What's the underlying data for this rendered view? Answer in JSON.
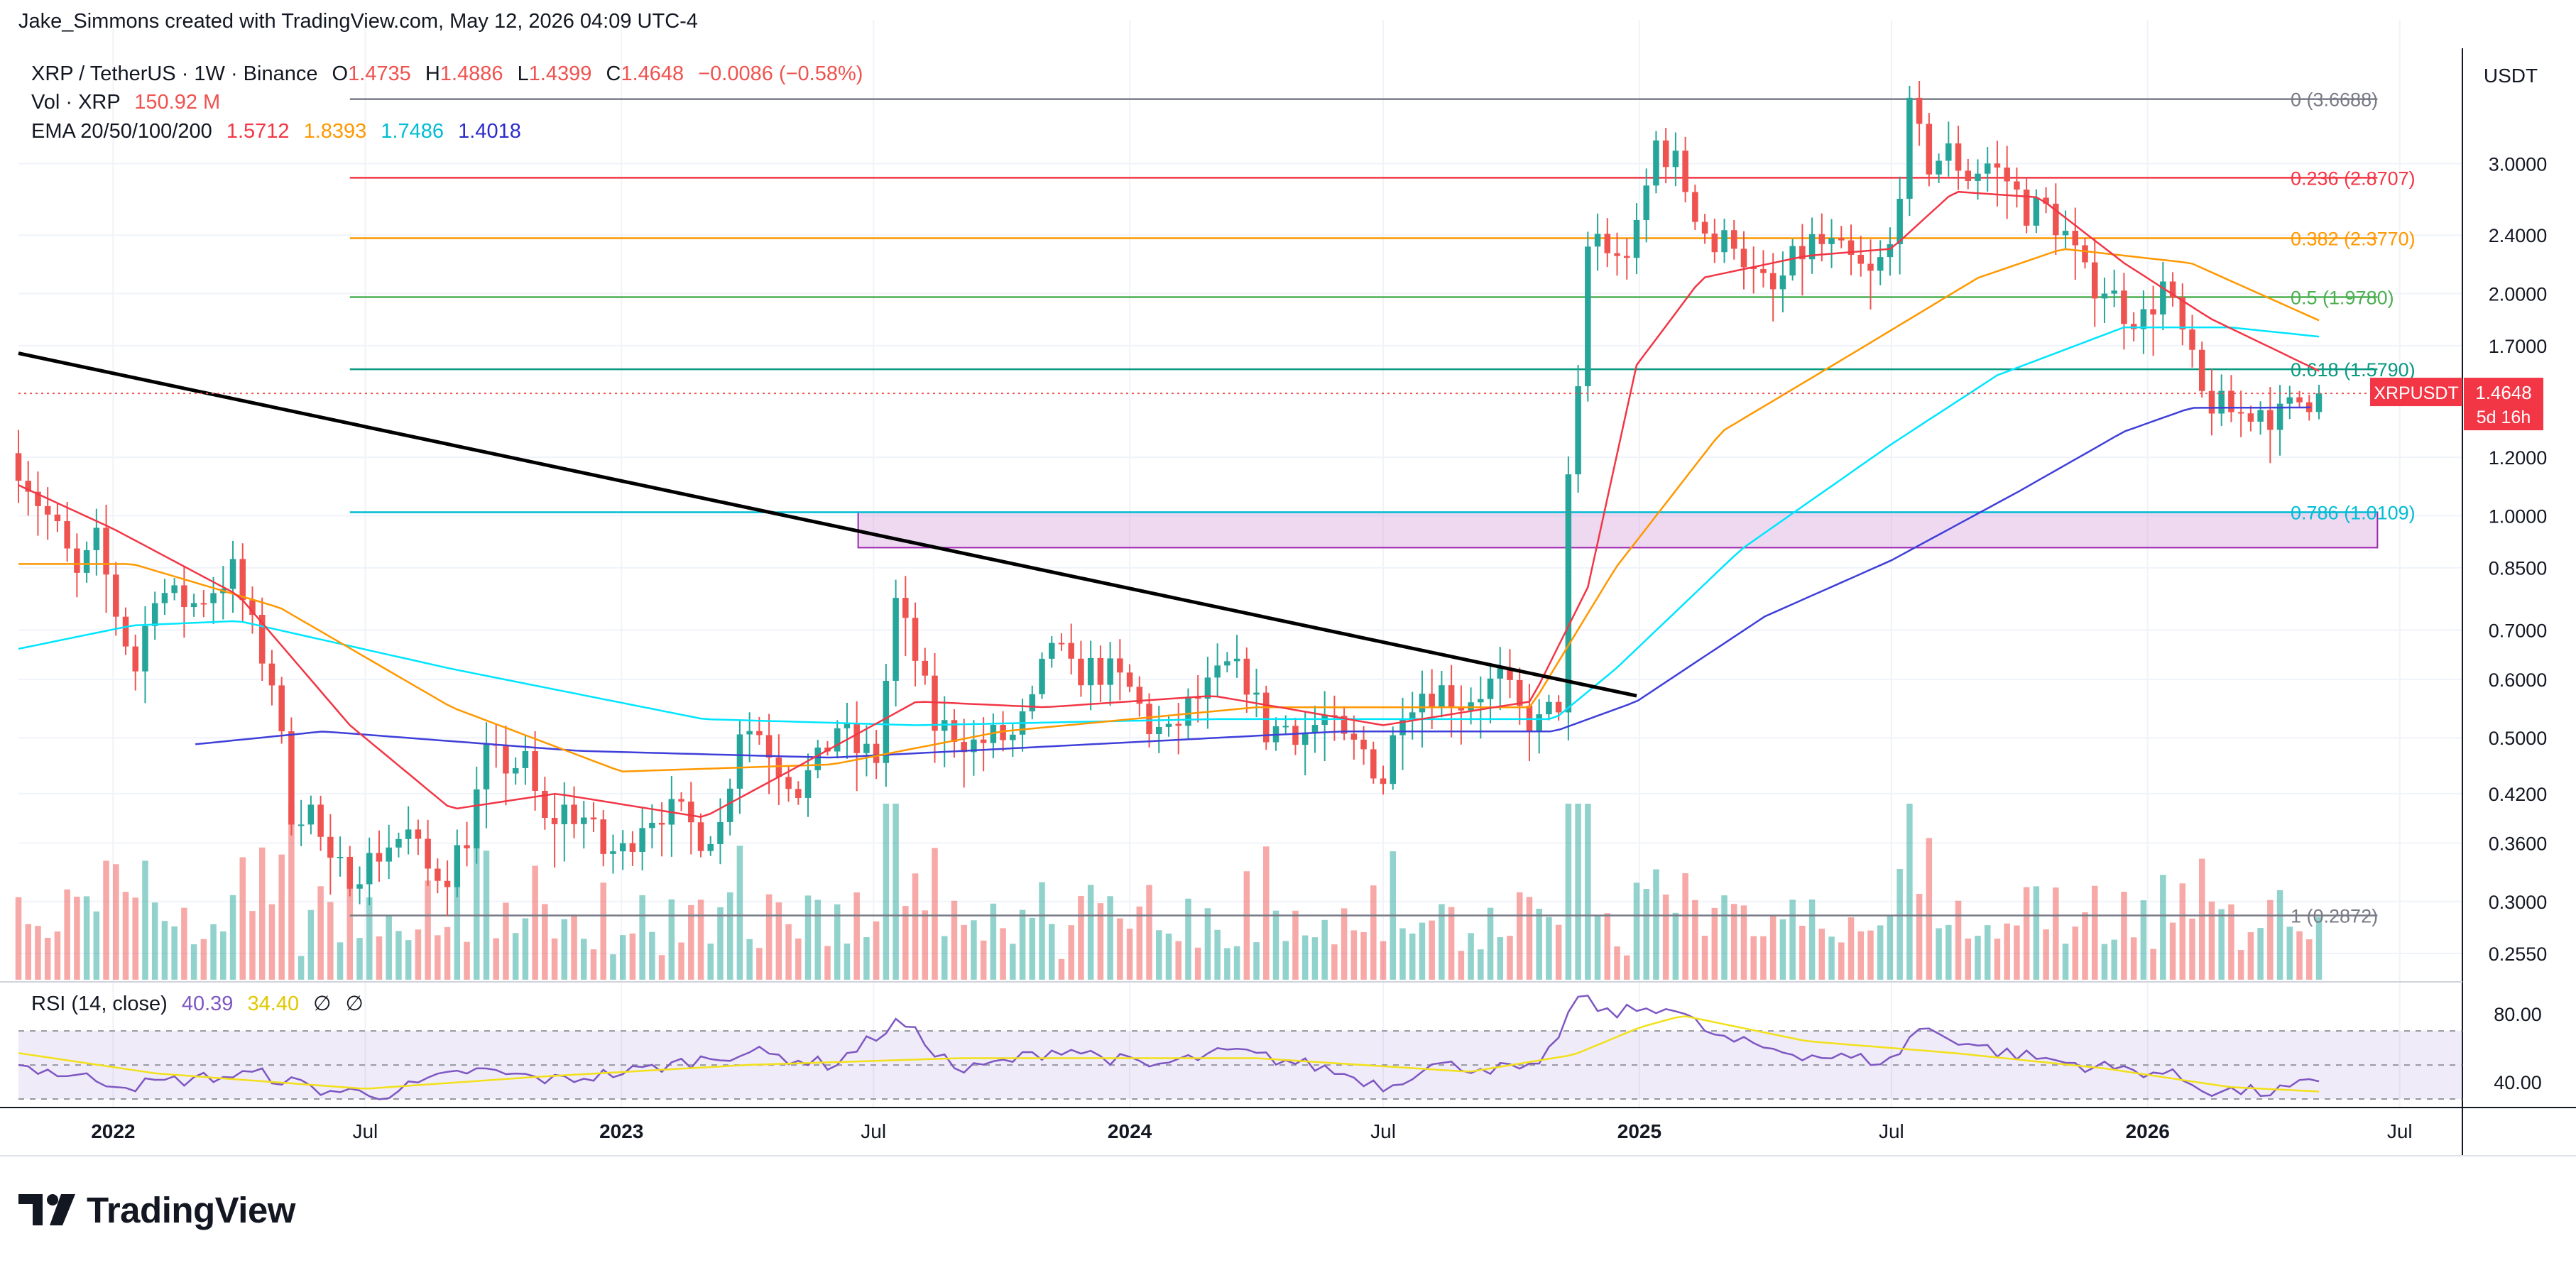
{
  "annotation": "Jake_Simmons created with TradingView.com, May 12, 2026 04:09 UTC-4",
  "header": {
    "symbol": "XRP / TetherUS · 1W · Binance",
    "o_label": "O",
    "o": "1.4735",
    "h_label": "H",
    "h": "1.4886",
    "l_label": "L",
    "l": "1.4399",
    "c_label": "C",
    "c": "1.4648",
    "change": "−0.0086 (−0.58%)",
    "vol_label": "Vol · XRP",
    "vol_value": "150.92 M",
    "ema_label": "EMA 20/50/100/200",
    "ema20": "1.5712",
    "ema50": "1.8393",
    "ema100": "1.7486",
    "ema200": "1.4018",
    "rsi_label": "RSI (14, close)",
    "rsi_value": "40.39",
    "rsi_ma": "34.40",
    "rsi_sym1": "∅",
    "rsi_sym2": "∅"
  },
  "price_label": {
    "symbol": "XRPUSDT",
    "value": "1.4648",
    "countdown": "5d 16h"
  },
  "logo_text": "TradingView",
  "colors": {
    "up": "#26a69a",
    "down": "#ef5350",
    "ema20": "#f23645",
    "ema50": "#ff9800",
    "ema100": "#00e5ff",
    "ema200": "#3f3fd9",
    "rsi": "#7e57c2",
    "rsi_ma": "#f2e01a",
    "trend": "#000000"
  },
  "chart_data": {
    "type": "candlestick",
    "interval": "1W",
    "scale": "log",
    "y_unit": "USDT",
    "ylim": [
      0.235,
      4.3
    ],
    "y_ticks": [
      3.0,
      2.4,
      2.0,
      1.7,
      1.2,
      1.0,
      0.85,
      0.7,
      0.6,
      0.5,
      0.42,
      0.36,
      0.3,
      0.255
    ],
    "y_tick_labels": [
      "3.0000",
      "2.4000",
      "2.0000",
      "1.7000",
      "1.2000",
      "1.0000",
      "0.8500",
      "0.7000",
      "0.6000",
      "0.5000",
      "0.4200",
      "0.3600",
      "0.3000",
      "0.2550"
    ],
    "xlim": [
      "2021-10-25",
      "2026-08-15"
    ],
    "x_ticks": [
      {
        "date": "2022-01-01",
        "label": "2022",
        "bold": true
      },
      {
        "date": "2022-07-01",
        "label": "Jul",
        "bold": false
      },
      {
        "date": "2023-01-01",
        "label": "2023",
        "bold": true
      },
      {
        "date": "2023-07-01",
        "label": "Jul",
        "bold": false
      },
      {
        "date": "2024-01-01",
        "label": "2024",
        "bold": true
      },
      {
        "date": "2024-07-01",
        "label": "Jul",
        "bold": false
      },
      {
        "date": "2025-01-01",
        "label": "2025",
        "bold": true
      },
      {
        "date": "2025-07-01",
        "label": "Jul",
        "bold": false
      },
      {
        "date": "2026-01-01",
        "label": "2026",
        "bold": true
      },
      {
        "date": "2026-07-01",
        "label": "Jul",
        "bold": false
      }
    ],
    "close_series": [
      [
        "2021-10-25",
        1.18
      ],
      [
        "2021-11-08",
        1.05
      ],
      [
        "2021-11-22",
        0.95
      ],
      [
        "2021-12-06",
        0.82
      ],
      [
        "2021-12-20",
        0.92
      ],
      [
        "2022-01-03",
        0.74
      ],
      [
        "2022-01-17",
        0.62
      ],
      [
        "2022-01-31",
        0.8
      ],
      [
        "2022-02-14",
        0.77
      ],
      [
        "2022-02-28",
        0.76
      ],
      [
        "2022-03-14",
        0.8
      ],
      [
        "2022-03-28",
        0.84
      ],
      [
        "2022-04-11",
        0.7
      ],
      [
        "2022-04-25",
        0.6
      ],
      [
        "2022-05-09",
        0.4
      ],
      [
        "2022-05-23",
        0.4
      ],
      [
        "2022-06-06",
        0.33
      ],
      [
        "2022-06-20",
        0.33
      ],
      [
        "2022-07-04",
        0.34
      ],
      [
        "2022-07-18",
        0.36
      ],
      [
        "2022-08-01",
        0.37
      ],
      [
        "2022-08-15",
        0.33
      ],
      [
        "2022-08-29",
        0.33
      ],
      [
        "2022-09-12",
        0.37
      ],
      [
        "2022-09-26",
        0.47
      ],
      [
        "2022-10-10",
        0.46
      ],
      [
        "2022-10-24",
        0.46
      ],
      [
        "2022-11-07",
        0.38
      ],
      [
        "2022-11-21",
        0.4
      ],
      [
        "2022-12-05",
        0.39
      ],
      [
        "2022-12-19",
        0.35
      ],
      [
        "2023-01-02",
        0.35
      ],
      [
        "2023-01-16",
        0.39
      ],
      [
        "2023-01-30",
        0.4
      ],
      [
        "2023-02-13",
        0.39
      ],
      [
        "2023-02-27",
        0.37
      ],
      [
        "2023-03-13",
        0.38
      ],
      [
        "2023-03-27",
        0.52
      ],
      [
        "2023-04-10",
        0.51
      ],
      [
        "2023-04-24",
        0.46
      ],
      [
        "2023-05-08",
        0.43
      ],
      [
        "2023-05-22",
        0.46
      ],
      [
        "2023-06-05",
        0.52
      ],
      [
        "2023-06-19",
        0.48
      ],
      [
        "2023-07-03",
        0.47
      ],
      [
        "2023-07-17",
        0.76
      ],
      [
        "2023-07-31",
        0.64
      ],
      [
        "2023-08-14",
        0.52
      ],
      [
        "2023-08-28",
        0.51
      ],
      [
        "2023-09-11",
        0.49
      ],
      [
        "2023-09-25",
        0.5
      ],
      [
        "2023-10-09",
        0.5
      ],
      [
        "2023-10-23",
        0.55
      ],
      [
        "2023-11-06",
        0.68
      ],
      [
        "2023-11-20",
        0.61
      ],
      [
        "2023-12-04",
        0.62
      ],
      [
        "2023-12-18",
        0.61
      ],
      [
        "2024-01-01",
        0.58
      ],
      [
        "2024-01-15",
        0.52
      ],
      [
        "2024-01-29",
        0.5
      ],
      [
        "2024-02-12",
        0.55
      ],
      [
        "2024-02-26",
        0.58
      ],
      [
        "2024-03-11",
        0.62
      ],
      [
        "2024-03-25",
        0.6
      ],
      [
        "2024-04-08",
        0.51
      ],
      [
        "2024-04-22",
        0.52
      ],
      [
        "2024-05-06",
        0.51
      ],
      [
        "2024-05-20",
        0.53
      ],
      [
        "2024-06-03",
        0.49
      ],
      [
        "2024-06-17",
        0.48
      ],
      [
        "2024-07-01",
        0.44
      ],
      [
        "2024-07-15",
        0.56
      ],
      [
        "2024-07-29",
        0.58
      ],
      [
        "2024-08-12",
        0.58
      ],
      [
        "2024-08-26",
        0.56
      ],
      [
        "2024-09-09",
        0.58
      ],
      [
        "2024-09-23",
        0.6
      ],
      [
        "2024-10-07",
        0.54
      ],
      [
        "2024-10-21",
        0.52
      ],
      [
        "2024-11-04",
        0.56
      ],
      [
        "2024-11-11",
        1.1
      ],
      [
        "2024-11-18",
        1.44
      ],
      [
        "2024-11-25",
        2.3
      ],
      [
        "2024-12-02",
        2.4
      ],
      [
        "2024-12-16",
        2.2
      ],
      [
        "2024-12-30",
        2.4
      ],
      [
        "2025-01-13",
        3.2
      ],
      [
        "2025-01-27",
        3.0
      ],
      [
        "2025-02-10",
        2.6
      ],
      [
        "2025-02-24",
        2.3
      ],
      [
        "2025-03-10",
        2.4
      ],
      [
        "2025-03-24",
        2.1
      ],
      [
        "2025-04-07",
        2.0
      ],
      [
        "2025-04-21",
        2.2
      ],
      [
        "2025-05-05",
        2.35
      ],
      [
        "2025-05-19",
        2.3
      ],
      [
        "2025-06-02",
        2.2
      ],
      [
        "2025-06-16",
        2.1
      ],
      [
        "2025-06-30",
        2.3
      ],
      [
        "2025-07-14",
        3.5
      ],
      [
        "2025-07-28",
        3.0
      ],
      [
        "2025-08-11",
        3.1
      ],
      [
        "2025-08-25",
        2.9
      ],
      [
        "2025-09-08",
        3.0
      ],
      [
        "2025-09-22",
        2.85
      ],
      [
        "2025-10-06",
        2.6
      ],
      [
        "2025-10-20",
        2.6
      ],
      [
        "2025-11-03",
        2.4
      ],
      [
        "2025-11-17",
        2.1
      ],
      [
        "2025-12-01",
        2.05
      ],
      [
        "2025-12-15",
        1.9
      ],
      [
        "2025-12-29",
        1.85
      ],
      [
        "2026-01-12",
        2.05
      ],
      [
        "2026-01-26",
        1.75
      ],
      [
        "2026-02-09",
        1.45
      ],
      [
        "2026-02-23",
        1.4
      ],
      [
        "2026-03-09",
        1.37
      ],
      [
        "2026-03-23",
        1.4
      ],
      [
        "2026-04-06",
        1.36
      ],
      [
        "2026-04-20",
        1.43
      ],
      [
        "2026-05-04",
        1.4648
      ]
    ],
    "ema20_series": [
      [
        "2021-10-25",
        1.1
      ],
      [
        "2022-01-01",
        0.96
      ],
      [
        "2022-04-01",
        0.78
      ],
      [
        "2022-06-20",
        0.52
      ],
      [
        "2022-09-01",
        0.4
      ],
      [
        "2022-11-15",
        0.42
      ],
      [
        "2023-03-01",
        0.39
      ],
      [
        "2023-05-01",
        0.45
      ],
      [
        "2023-08-01",
        0.56
      ],
      [
        "2023-11-01",
        0.55
      ],
      [
        "2024-03-01",
        0.57
      ],
      [
        "2024-07-01",
        0.52
      ],
      [
        "2024-10-15",
        0.56
      ],
      [
        "2024-11-25",
        0.8
      ],
      [
        "2024-12-30",
        1.6
      ],
      [
        "2025-02-15",
        2.1
      ],
      [
        "2025-05-01",
        2.25
      ],
      [
        "2025-07-01",
        2.3
      ],
      [
        "2025-08-15",
        2.75
      ],
      [
        "2025-10-15",
        2.7
      ],
      [
        "2025-12-15",
        2.2
      ],
      [
        "2026-02-15",
        1.85
      ],
      [
        "2026-05-04",
        1.5712
      ]
    ],
    "ema50_series": [
      [
        "2021-10-25",
        0.86
      ],
      [
        "2022-01-15",
        0.86
      ],
      [
        "2022-05-01",
        0.75
      ],
      [
        "2022-09-01",
        0.55
      ],
      [
        "2023-01-01",
        0.45
      ],
      [
        "2023-06-01",
        0.46
      ],
      [
        "2023-10-01",
        0.51
      ],
      [
        "2024-04-01",
        0.55
      ],
      [
        "2024-10-15",
        0.55
      ],
      [
        "2024-12-15",
        0.85
      ],
      [
        "2025-03-01",
        1.3
      ],
      [
        "2025-06-01",
        1.65
      ],
      [
        "2025-09-01",
        2.1
      ],
      [
        "2025-11-01",
        2.3
      ],
      [
        "2026-02-01",
        2.2
      ],
      [
        "2026-05-04",
        1.8393
      ]
    ],
    "ema100_series": [
      [
        "2021-10-25",
        0.66
      ],
      [
        "2022-01-15",
        0.71
      ],
      [
        "2022-04-01",
        0.72
      ],
      [
        "2022-09-01",
        0.62
      ],
      [
        "2023-03-01",
        0.53
      ],
      [
        "2023-08-01",
        0.52
      ],
      [
        "2024-03-01",
        0.53
      ],
      [
        "2024-11-01",
        0.53
      ],
      [
        "2024-12-15",
        0.62
      ],
      [
        "2025-03-15",
        0.9
      ],
      [
        "2025-07-01",
        1.25
      ],
      [
        "2025-09-15",
        1.55
      ],
      [
        "2025-12-15",
        1.8
      ],
      [
        "2026-03-01",
        1.8
      ],
      [
        "2026-05-04",
        1.7486
      ]
    ],
    "ema200_series": [
      [
        "2022-03-01",
        0.49
      ],
      [
        "2022-06-01",
        0.51
      ],
      [
        "2022-12-01",
        0.48
      ],
      [
        "2023-06-01",
        0.47
      ],
      [
        "2024-06-01",
        0.51
      ],
      [
        "2024-11-01",
        0.51
      ],
      [
        "2024-12-30",
        0.56
      ],
      [
        "2025-04-01",
        0.73
      ],
      [
        "2025-07-01",
        0.87
      ],
      [
        "2025-10-01",
        1.08
      ],
      [
        "2025-12-15",
        1.3
      ],
      [
        "2026-02-01",
        1.4
      ],
      [
        "2026-05-04",
        1.4018
      ]
    ],
    "fib_levels": [
      {
        "ratio": "0",
        "value": 3.6688,
        "label": "0 (3.6688)",
        "color": "#787b86"
      },
      {
        "ratio": "0.236",
        "value": 2.8707,
        "label": "0.236 (2.8707)",
        "color": "#f23645"
      },
      {
        "ratio": "0.382",
        "value": 2.377,
        "label": "0.382 (2.3770)",
        "color": "#ff9800"
      },
      {
        "ratio": "0.5",
        "value": 1.978,
        "label": "0.5 (1.9780)",
        "color": "#4caf50"
      },
      {
        "ratio": "0.618",
        "value": 1.579,
        "label": "0.618 (1.5790)",
        "color": "#089981"
      },
      {
        "ratio": "0.786",
        "value": 1.0109,
        "label": "0.786 (1.0109)",
        "color": "#00bcd4"
      },
      {
        "ratio": "1",
        "value": 0.2872,
        "label": "1 (0.2872)",
        "color": "#787b86"
      }
    ],
    "fib_start": "2022-06-20",
    "fib_end": "2026-06-15",
    "zone": {
      "from": "2023-06-20",
      "to": "2026-06-15",
      "low": 0.905,
      "high": 1.0109
    },
    "trendline": {
      "from": [
        "2021-10-25",
        1.66
      ],
      "to": [
        "2024-12-30",
        0.57
      ]
    },
    "rsi": {
      "ylim": [
        25,
        98
      ],
      "upper": 70,
      "lower": 30,
      "mid": 50,
      "y_ticks": [
        80,
        40
      ],
      "y_tick_labels": [
        "80.00",
        "40.00"
      ],
      "rsi_series": [
        [
          "2021-10-25",
          50
        ],
        [
          "2021-12-01",
          44
        ],
        [
          "2022-01-15",
          38
        ],
        [
          "2022-03-01",
          42
        ],
        [
          "2022-04-15",
          45
        ],
        [
          "2022-06-01",
          35
        ],
        [
          "2022-07-15",
          33
        ],
        [
          "2022-09-15",
          47
        ],
        [
          "2022-11-15",
          41
        ],
        [
          "2023-01-15",
          47
        ],
        [
          "2023-04-01",
          58
        ],
        [
          "2023-06-01",
          50
        ],
        [
          "2023-07-20",
          76
        ],
        [
          "2023-09-01",
          46
        ],
        [
          "2023-11-15",
          60
        ],
        [
          "2024-01-15",
          49
        ],
        [
          "2024-03-15",
          58
        ],
        [
          "2024-05-15",
          49
        ],
        [
          "2024-07-05",
          37
        ],
        [
          "2024-08-01",
          50
        ],
        [
          "2024-10-21",
          47
        ],
        [
          "2024-11-18",
          90
        ],
        [
          "2024-12-10",
          80
        ],
        [
          "2025-01-20",
          85
        ],
        [
          "2025-03-01",
          65
        ],
        [
          "2025-05-01",
          56
        ],
        [
          "2025-07-01",
          52
        ],
        [
          "2025-07-20",
          72
        ],
        [
          "2025-09-15",
          58
        ],
        [
          "2025-11-15",
          50
        ],
        [
          "2026-01-15",
          45
        ],
        [
          "2026-02-15",
          35
        ],
        [
          "2026-04-01",
          34
        ],
        [
          "2026-05-04",
          40.39
        ]
      ],
      "ma_series": [
        [
          "2021-10-25",
          57
        ],
        [
          "2022-02-01",
          45
        ],
        [
          "2022-07-01",
          36
        ],
        [
          "2022-11-01",
          43
        ],
        [
          "2023-04-01",
          50
        ],
        [
          "2023-09-01",
          54
        ],
        [
          "2024-04-01",
          54
        ],
        [
          "2024-09-01",
          46
        ],
        [
          "2024-11-15",
          56
        ],
        [
          "2025-01-01",
          72
        ],
        [
          "2025-02-01",
          79
        ],
        [
          "2025-05-01",
          64
        ],
        [
          "2025-08-15",
          57
        ],
        [
          "2025-12-01",
          48
        ],
        [
          "2026-03-01",
          37
        ],
        [
          "2026-05-04",
          34.4
        ]
      ]
    }
  }
}
